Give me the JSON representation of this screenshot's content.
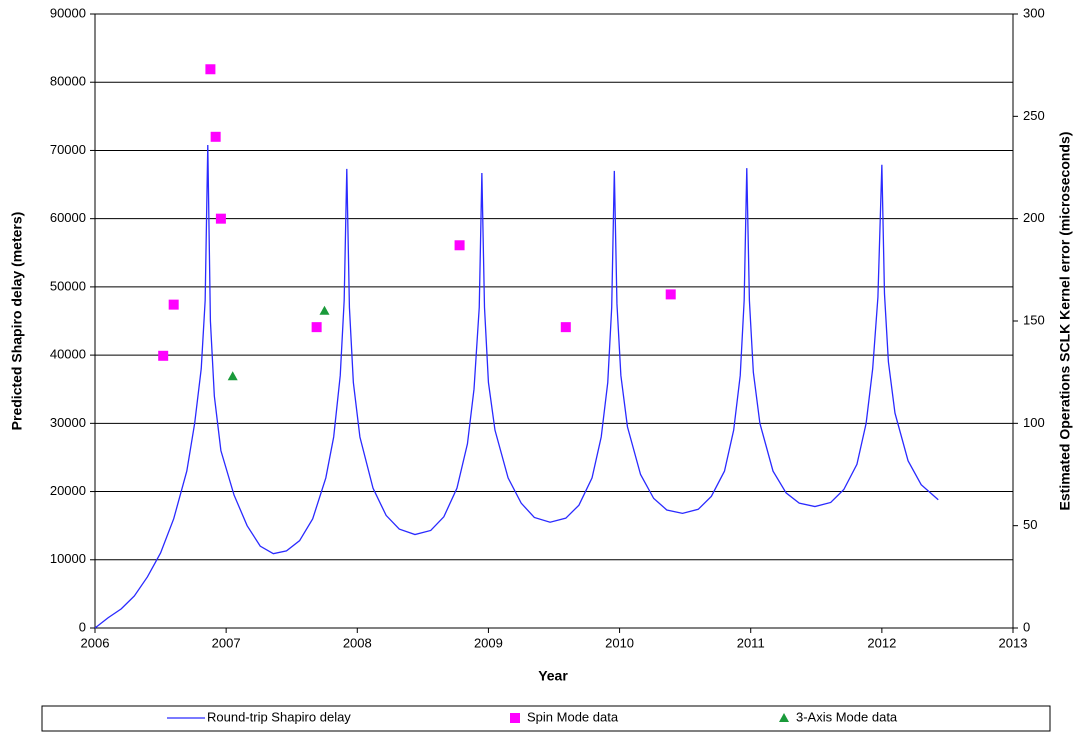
{
  "chart_data": {
    "type": "line-scatter",
    "xlabel": "Year",
    "ylabel": "Predicted Shapiro delay (meters)",
    "y2label": "Estimated Operations SCLK Kernel error (microseconds)",
    "xlim": [
      2006,
      2013
    ],
    "xticks": [
      2006,
      2007,
      2008,
      2009,
      2010,
      2011,
      2012,
      2013
    ],
    "ylim": [
      0,
      90000
    ],
    "yticks": [
      0,
      10000,
      20000,
      30000,
      40000,
      50000,
      60000,
      70000,
      80000,
      90000
    ],
    "y2lim": [
      0,
      300
    ],
    "y2ticks": [
      0,
      50,
      100,
      150,
      200,
      250,
      300
    ],
    "grid": true,
    "legend": "bottom",
    "series": [
      {
        "name": "Round-trip Shapiro delay",
        "color": "#2a2aff",
        "kind": "line",
        "x": [
          2006.0,
          2006.1,
          2006.2,
          2006.3,
          2006.4,
          2006.5,
          2006.6,
          2006.7,
          2006.76,
          2006.81,
          2006.84,
          2006.86,
          2006.88,
          2006.91,
          2006.96,
          2007.06,
          2007.16,
          2007.26,
          2007.36,
          2007.46,
          2007.56,
          2007.66,
          2007.76,
          2007.82,
          2007.87,
          2007.9,
          2007.92,
          2007.94,
          2007.97,
          2008.02,
          2008.12,
          2008.22,
          2008.32,
          2008.44,
          2008.56,
          2008.66,
          2008.76,
          2008.84,
          2008.89,
          2008.93,
          2008.95,
          2008.97,
          2009.0,
          2009.05,
          2009.15,
          2009.25,
          2009.35,
          2009.47,
          2009.59,
          2009.69,
          2009.79,
          2009.86,
          2009.91,
          2009.94,
          2009.96,
          2009.98,
          2010.01,
          2010.06,
          2010.16,
          2010.26,
          2010.36,
          2010.48,
          2010.6,
          2010.7,
          2010.8,
          2010.87,
          2010.92,
          2010.95,
          2010.97,
          2010.99,
          2011.02,
          2011.07,
          2011.17,
          2011.27,
          2011.37,
          2011.49,
          2011.61,
          2011.71,
          2011.81,
          2011.88,
          2011.93,
          2011.97,
          2012.0,
          2012.02,
          2012.05,
          2012.1,
          2012.2,
          2012.3,
          2012.43
        ],
        "values": [
          0,
          1500,
          2800,
          4700,
          7500,
          11000,
          16000,
          23000,
          30000,
          38000,
          48000,
          70800,
          45000,
          34000,
          26000,
          19500,
          15000,
          12000,
          10900,
          11300,
          12800,
          16000,
          22000,
          28000,
          37000,
          48000,
          67300,
          47000,
          36000,
          28000,
          20500,
          16500,
          14500,
          13700,
          14300,
          16300,
          20500,
          27000,
          35000,
          47000,
          66700,
          47000,
          36000,
          29000,
          22000,
          18300,
          16200,
          15500,
          16100,
          18000,
          22000,
          28000,
          36000,
          47000,
          67000,
          47500,
          37000,
          29500,
          22500,
          19000,
          17300,
          16800,
          17400,
          19300,
          23000,
          29000,
          37000,
          48000,
          67400,
          48000,
          37500,
          30000,
          23000,
          19800,
          18300,
          17800,
          18400,
          20300,
          24000,
          30000,
          38000,
          48500,
          67900,
          49000,
          39000,
          31500,
          24500,
          21000,
          18800
        ]
      },
      {
        "name": "Spin Mode data",
        "color": "#ff00ff",
        "kind": "scatter",
        "marker": "square",
        "axis": "y2",
        "x": [
          2006.52,
          2006.6,
          2006.88,
          2006.92,
          2006.96,
          2007.69,
          2008.78,
          2009.59,
          2010.39
        ],
        "values": [
          133,
          158,
          273,
          240,
          200,
          147,
          187,
          147,
          163
        ]
      },
      {
        "name": "3-Axis Mode data",
        "color": "#1a9a3a",
        "kind": "scatter",
        "marker": "triangle",
        "axis": "y2",
        "x": [
          2007.05,
          2007.75
        ],
        "values": [
          123,
          155
        ]
      }
    ]
  }
}
